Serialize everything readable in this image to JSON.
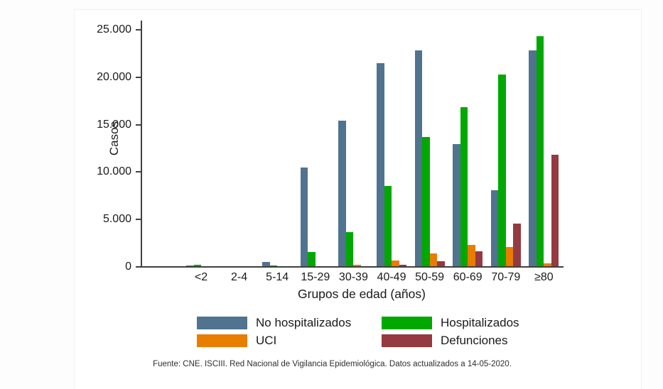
{
  "chart_data": {
    "type": "bar",
    "title": "",
    "xlabel": "Grupos de edad (años)",
    "ylabel": "Casos",
    "ylim": [
      0,
      25000
    ],
    "ytick_step": 5000,
    "ytick_labels": [
      "0",
      "5.000",
      "10.000",
      "15.000",
      "20.000",
      "25.000"
    ],
    "grid": false,
    "legend_position": "bottom",
    "categories": [
      "<2",
      "2-4",
      "5-14",
      "15-29",
      "30-39",
      "40-49",
      "50-59",
      "60-69",
      "70-79",
      "≥80"
    ],
    "series": [
      {
        "name": "No hospitalizados",
        "color": "#50738f",
        "values": [
          170,
          100,
          550,
          10500,
          15400,
          21450,
          22800,
          12950,
          8100,
          22800
        ]
      },
      {
        "name": "Hospitalizados",
        "color": "#00a800",
        "values": [
          200,
          50,
          170,
          1600,
          3700,
          8500,
          13700,
          16850,
          20250,
          24300
        ]
      },
      {
        "name": "UCI",
        "color": "#e87d00",
        "values": [
          15,
          10,
          15,
          100,
          200,
          650,
          1400,
          2300,
          2100,
          400
        ]
      },
      {
        "name": "Defunciones",
        "color": "#943a40",
        "values": [
          10,
          5,
          10,
          30,
          80,
          220,
          600,
          1650,
          4550,
          11800
        ]
      }
    ]
  },
  "source_note": "Fuente: CNE. ISCIII. Red Nacional de Vigilancia Epidemiológica. Datos actualizados a 14-05-2020."
}
